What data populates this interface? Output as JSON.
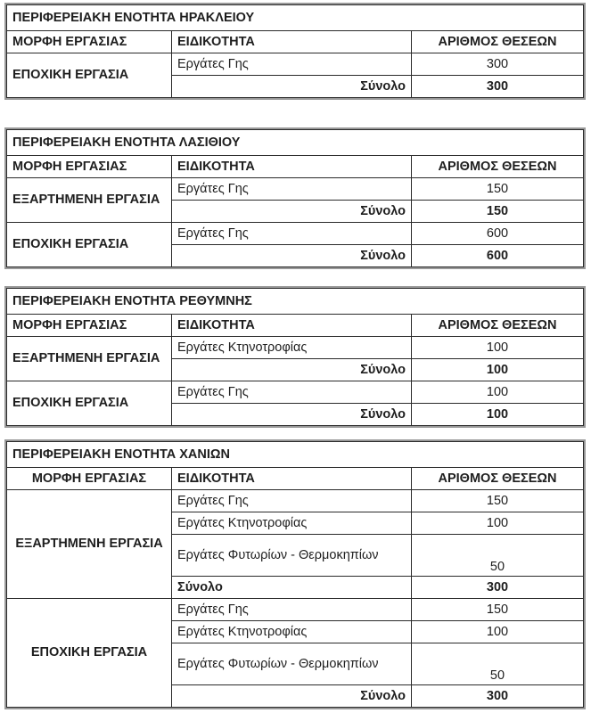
{
  "tables": [
    {
      "title": "ΠΕΡΙΦΕΡΕΙΑΚΗ ΕΝΟΤΗΤΑ ΗΡΑΚΛΕΙΟΥ",
      "headers": [
        "ΜΟΡΦΗ ΕΡΓΑΣΙΑΣ",
        "ΕΙΔΙΚΟΤΗΤΑ",
        "ΑΡΙΘΜΟΣ ΘΕΣΕΩΝ"
      ],
      "groups": [
        {
          "work_type": "ΕΠΟΧΙΚΗ ΕΡΓΑΣΙΑ",
          "rows": [
            {
              "specialty": "Εργάτες Γης",
              "positions": "300"
            }
          ],
          "total": {
            "label": "Σύνολο",
            "value": "300"
          }
        }
      ]
    },
    {
      "title": "ΠΕΡΙΦΕΡΕΙΑΚΗ ΕΝΟΤΗΤΑ ΛΑΣΙΘΙΟΥ",
      "headers": [
        "ΜΟΡΦΗ ΕΡΓΑΣΙΑΣ",
        "ΕΙΔΙΚΟΤΗΤΑ",
        "ΑΡΙΘΜΟΣ ΘΕΣΕΩΝ"
      ],
      "groups": [
        {
          "work_type": "ΕΞΑΡΤΗΜΕΝΗ ΕΡΓΑΣΙΑ",
          "rows": [
            {
              "specialty": "Εργάτες Γης",
              "positions": "150"
            }
          ],
          "total": {
            "label": "Σύνολο",
            "value": "150"
          }
        },
        {
          "work_type": "ΕΠΟΧΙΚΗ ΕΡΓΑΣΙΑ",
          "rows": [
            {
              "specialty": "Εργάτες Γης",
              "positions": "600"
            }
          ],
          "total": {
            "label": "Σύνολο",
            "value": "600"
          }
        }
      ]
    },
    {
      "title": "ΠΕΡΙΦΕΡΕΙΑΚΗ ΕΝΟΤΗΤΑ ΡΕΘΥΜΝΗΣ",
      "headers": [
        "ΜΟΡΦΗ ΕΡΓΑΣΙΑΣ",
        "ΕΙΔΙΚΟΤΗΤΑ",
        "ΑΡΙΘΜΟΣ ΘΕΣΕΩΝ"
      ],
      "groups": [
        {
          "work_type": "ΕΞΑΡΤΗΜΕΝΗ ΕΡΓΑΣΙΑ",
          "rows": [
            {
              "specialty": "Εργάτες Κτηνοτροφίας",
              "positions": "100"
            }
          ],
          "total": {
            "label": "Σύνολο",
            "value": "100"
          }
        },
        {
          "work_type": "ΕΠΟΧΙΚΗ ΕΡΓΑΣΙΑ",
          "rows": [
            {
              "specialty": "Εργάτες Γης",
              "positions": "100"
            }
          ],
          "total": {
            "label": "Σύνολο",
            "value": "100"
          }
        }
      ]
    },
    {
      "title": "ΠΕΡΙΦΕΡΕΙΑΚΗ ΕΝΟΤΗΤΑ ΧΑΝΙΩΝ",
      "headers": [
        "ΜΟΡΦΗ ΕΡΓΑΣΙΑΣ",
        "ΕΙΔΙΚΟΤΗΤΑ",
        "ΑΡΙΘΜΟΣ ΘΕΣΕΩΝ"
      ],
      "groups": [
        {
          "work_type": "ΕΞΑΡΤΗΜΕΝΗ ΕΡΓΑΣΙΑ",
          "rows": [
            {
              "specialty": "Εργάτες Γης",
              "positions": "150"
            },
            {
              "specialty": "Εργάτες Κτηνοτροφίας",
              "positions": "100"
            },
            {
              "specialty": "Εργάτες Φυτωρίων - Θερμοκηπίων",
              "positions": "50"
            }
          ],
          "total": {
            "label": "Σύνολο",
            "value": "300"
          }
        },
        {
          "work_type": "ΕΠΟΧΙΚΗ ΕΡΓΑΣΙΑ",
          "rows": [
            {
              "specialty": "Εργάτες Γης",
              "positions": "150"
            },
            {
              "specialty": "Εργάτες Κτηνοτροφίας",
              "positions": "100"
            },
            {
              "specialty": "Εργάτες Φυτωρίων - Θερμοκηπίων",
              "positions": "50"
            }
          ],
          "total": {
            "label": "Σύνολο",
            "value": "300"
          }
        }
      ]
    }
  ]
}
